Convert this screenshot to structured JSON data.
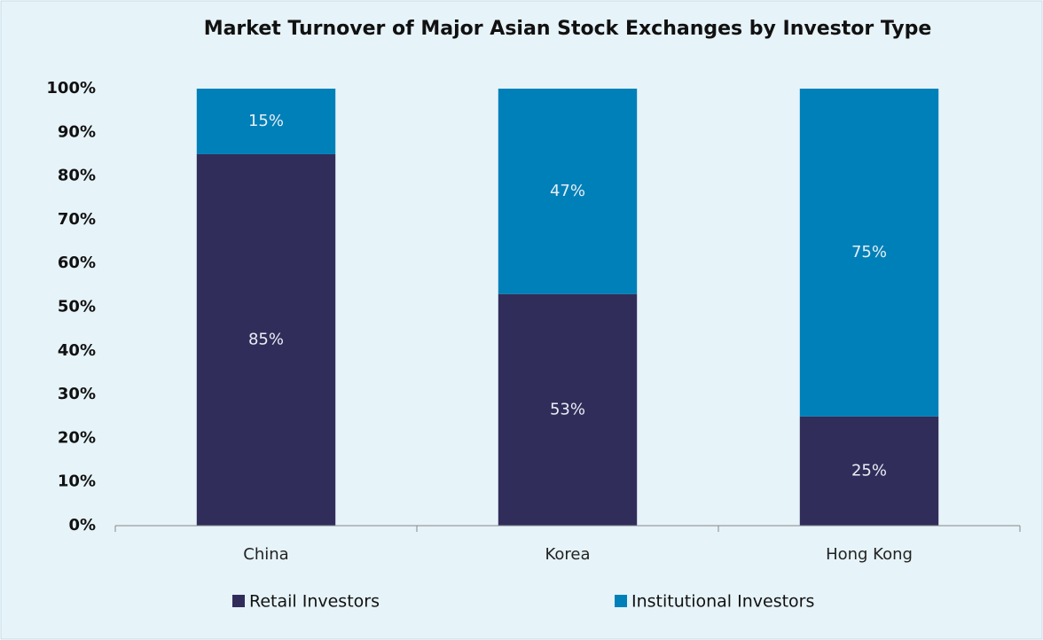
{
  "chart_data": {
    "type": "stacked_bar",
    "title": "Market Turnover of Major Asian Stock Exchanges by Investor Type",
    "categories": [
      "China",
      "Korea",
      "Hong Kong"
    ],
    "series": [
      {
        "name": "Retail Investors",
        "color": "#312d5a",
        "values": [
          85,
          53,
          25
        ],
        "value_labels": [
          "85%",
          "53%",
          "25%"
        ]
      },
      {
        "name": "Institutional Investors",
        "color": "#0080b8",
        "values": [
          15,
          47,
          75
        ],
        "value_labels": [
          "15%",
          "47%",
          "75%"
        ]
      }
    ],
    "ylim": [
      0,
      100
    ],
    "yticks": [
      {
        "value": 0,
        "label": "0%"
      },
      {
        "value": 10,
        "label": "10%"
      },
      {
        "value": 20,
        "label": "20%"
      },
      {
        "value": 30,
        "label": "30%"
      },
      {
        "value": 40,
        "label": "40%"
      },
      {
        "value": 50,
        "label": "50%"
      },
      {
        "value": 60,
        "label": "60%"
      },
      {
        "value": 70,
        "label": "70%"
      },
      {
        "value": 80,
        "label": "80%"
      },
      {
        "value": 90,
        "label": "90%"
      },
      {
        "value": 100,
        "label": "100%"
      }
    ],
    "grid": false,
    "legend": "bottom"
  }
}
